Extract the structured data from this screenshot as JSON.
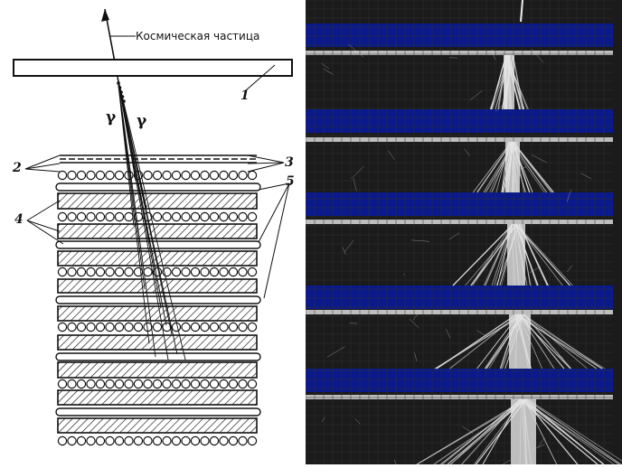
{
  "diagram": {
    "particle_label": "Космическая частица",
    "gamma_left": "γ",
    "gamma_right": "γ",
    "labels": {
      "one": "1",
      "two": "2",
      "three": "3",
      "four": "4",
      "five": "5"
    }
  },
  "colors": {
    "ink": "#111111",
    "plate_bg": "#ffffff",
    "photo_bg": "#1a1a1a",
    "blue_band": "#0a1a8c",
    "track": "#e8e8e8"
  }
}
